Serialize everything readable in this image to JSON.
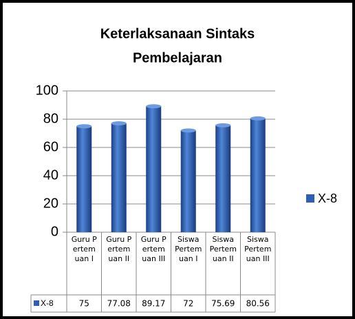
{
  "chart_data": {
    "type": "bar",
    "title": "Keterlaksanaan Sintaks Pembelajaran",
    "categories": [
      "Guru Pertemuan I",
      "Guru Pertemuan II",
      "Guru Pertemuan III",
      "Siswa Pertemuan I",
      "Siswa Pertemuan II",
      "Siswa Pertemuan III"
    ],
    "series": [
      {
        "name": "X-8",
        "color": "#2f5fb3",
        "values": [
          75,
          77.08,
          89.17,
          72,
          75.69,
          80.56
        ]
      }
    ],
    "ylim": [
      0,
      100
    ],
    "yticks": [
      0,
      20,
      40,
      60,
      80,
      100
    ],
    "grid": true,
    "legend": "right",
    "data_table": true
  }
}
